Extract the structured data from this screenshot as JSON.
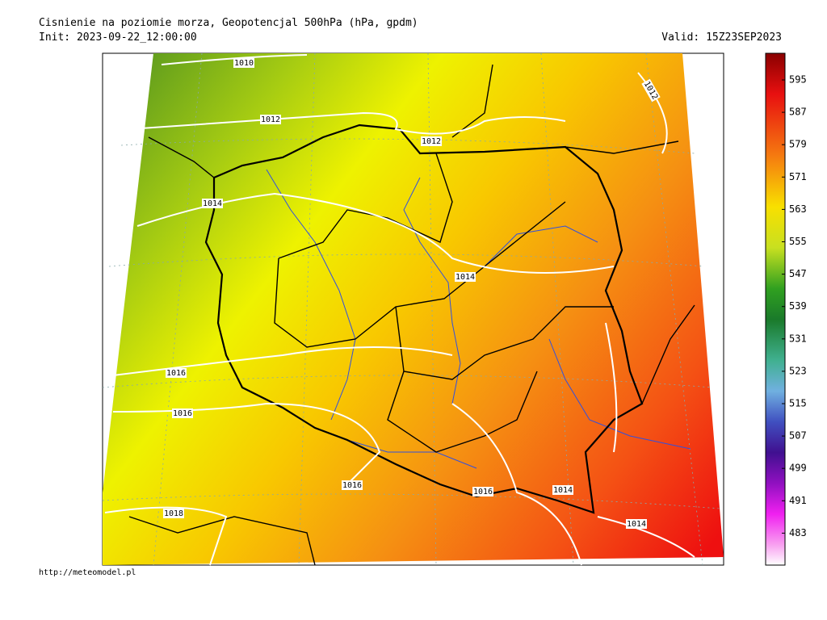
{
  "header": {
    "title": "Cisnienie na poziomie morza, Geopotencjal 500hPa (hPa, gpdm)",
    "init": "Init: 2023-09-22_12:00:00",
    "valid": "Valid: 15Z23SEP2023"
  },
  "isobar_labels": [
    "1010",
    "1012",
    "1012",
    "1012",
    "1014",
    "1014",
    "1016",
    "1016",
    "1016",
    "1018",
    "1016",
    "1014",
    "1014"
  ],
  "colorbar": {
    "labels": [
      "595",
      "587",
      "579",
      "571",
      "563",
      "555",
      "547",
      "539",
      "531",
      "523",
      "515",
      "507",
      "499",
      "491",
      "483"
    ]
  },
  "footer": {
    "source": "http://meteomodel.pl"
  }
}
